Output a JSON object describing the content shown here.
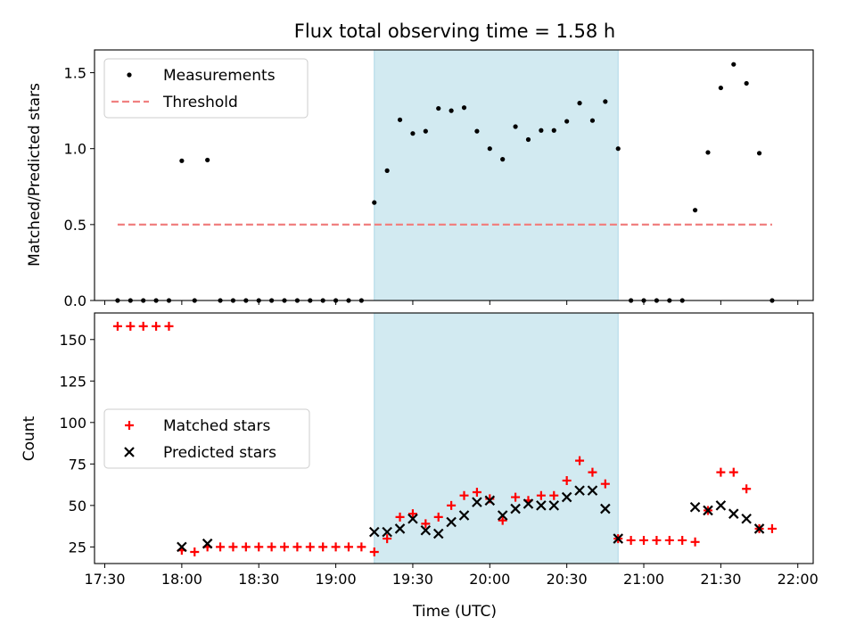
{
  "chart_data": {
    "title": "Flux total observing time = 1.58 h",
    "xlabel": "Time (UTC)",
    "x_unit": "minutes after 17:30 UTC",
    "xlim": [
      -4,
      276
    ],
    "xticks": [
      0,
      30,
      60,
      90,
      120,
      150,
      180,
      210,
      240,
      270
    ],
    "xtick_labels": [
      "17:30",
      "18:00",
      "18:30",
      "19:00",
      "19:30",
      "20:00",
      "20:30",
      "21:00",
      "21:30",
      "22:00"
    ],
    "observing_span": {
      "start": 105,
      "end": 200,
      "color": "#add8e6"
    },
    "panels": [
      {
        "type": "scatter",
        "ylabel": "Matched/Predicted stars",
        "ylim": [
          0,
          1.65
        ],
        "yticks": [
          0.0,
          0.5,
          1.0,
          1.5
        ],
        "ytick_labels": [
          "0.0",
          "0.5",
          "1.0",
          "1.5"
        ],
        "legend_position": "top-left",
        "series": [
          {
            "name": "Measurements",
            "marker": "dot",
            "color": "#000000",
            "points": [
              [
                5,
                0
              ],
              [
                10,
                0
              ],
              [
                15,
                0
              ],
              [
                20,
                0
              ],
              [
                25,
                0
              ],
              [
                30,
                0.92
              ],
              [
                35,
                0
              ],
              [
                40,
                0.925
              ],
              [
                45,
                0
              ],
              [
                50,
                0
              ],
              [
                55,
                0
              ],
              [
                60,
                0
              ],
              [
                65,
                0
              ],
              [
                70,
                0
              ],
              [
                75,
                0
              ],
              [
                80,
                0
              ],
              [
                85,
                0
              ],
              [
                90,
                0
              ],
              [
                95,
                0
              ],
              [
                100,
                0
              ],
              [
                105,
                0.645
              ],
              [
                110,
                0.855
              ],
              [
                115,
                1.19
              ],
              [
                120,
                1.1
              ],
              [
                125,
                1.115
              ],
              [
                130,
                1.265
              ],
              [
                135,
                1.25
              ],
              [
                140,
                1.27
              ],
              [
                145,
                1.115
              ],
              [
                150,
                1.0
              ],
              [
                155,
                0.93
              ],
              [
                160,
                1.145
              ],
              [
                165,
                1.06
              ],
              [
                170,
                1.12
              ],
              [
                175,
                1.12
              ],
              [
                180,
                1.18
              ],
              [
                185,
                1.3
              ],
              [
                190,
                1.185
              ],
              [
                195,
                1.31
              ],
              [
                200,
                1.0
              ],
              [
                205,
                0
              ],
              [
                210,
                0
              ],
              [
                215,
                0
              ],
              [
                220,
                0
              ],
              [
                225,
                0
              ],
              [
                230,
                0.595
              ],
              [
                235,
                0.975
              ],
              [
                240,
                1.4
              ],
              [
                245,
                1.555
              ],
              [
                250,
                1.43
              ],
              [
                255,
                0.97
              ],
              [
                260,
                0
              ]
            ]
          },
          {
            "name": "Threshold",
            "marker": "dashed-line",
            "color": "#f08080",
            "points": [
              [
                5,
                0.5
              ],
              [
                260,
                0.5
              ]
            ]
          }
        ]
      },
      {
        "type": "scatter",
        "ylabel": "Count",
        "ylim": [
          15,
          166
        ],
        "yticks": [
          25,
          50,
          75,
          100,
          125,
          150
        ],
        "ytick_labels": [
          "25",
          "50",
          "75",
          "100",
          "125",
          "150"
        ],
        "legend_position": "center-left",
        "series": [
          {
            "name": "Matched stars",
            "marker": "plus",
            "color": "#ff0000",
            "points": [
              [
                5,
                158
              ],
              [
                10,
                158
              ],
              [
                15,
                158
              ],
              [
                20,
                158
              ],
              [
                25,
                158
              ],
              [
                30,
                23
              ],
              [
                35,
                22
              ],
              [
                40,
                25
              ],
              [
                45,
                25
              ],
              [
                50,
                25
              ],
              [
                55,
                25
              ],
              [
                60,
                25
              ],
              [
                65,
                25
              ],
              [
                70,
                25
              ],
              [
                75,
                25
              ],
              [
                80,
                25
              ],
              [
                85,
                25
              ],
              [
                90,
                25
              ],
              [
                95,
                25
              ],
              [
                100,
                25
              ],
              [
                105,
                22
              ],
              [
                110,
                30
              ],
              [
                115,
                43
              ],
              [
                120,
                45
              ],
              [
                125,
                39
              ],
              [
                130,
                43
              ],
              [
                135,
                50
              ],
              [
                140,
                56
              ],
              [
                145,
                58
              ],
              [
                150,
                54
              ],
              [
                155,
                41
              ],
              [
                160,
                55
              ],
              [
                165,
                53
              ],
              [
                170,
                56
              ],
              [
                175,
                56
              ],
              [
                180,
                65
              ],
              [
                185,
                77
              ],
              [
                190,
                70
              ],
              [
                195,
                63
              ],
              [
                200,
                30
              ],
              [
                205,
                29
              ],
              [
                210,
                29
              ],
              [
                215,
                29
              ],
              [
                220,
                29
              ],
              [
                225,
                29
              ],
              [
                230,
                28
              ],
              [
                235,
                47
              ],
              [
                240,
                70
              ],
              [
                245,
                70
              ],
              [
                250,
                60
              ],
              [
                255,
                36
              ],
              [
                260,
                36
              ]
            ]
          },
          {
            "name": "Predicted stars",
            "marker": "x",
            "color": "#000000",
            "points": [
              [
                30,
                25
              ],
              [
                40,
                27
              ],
              [
                105,
                34
              ],
              [
                110,
                34
              ],
              [
                115,
                36
              ],
              [
                120,
                42
              ],
              [
                125,
                35
              ],
              [
                130,
                33
              ],
              [
                135,
                40
              ],
              [
                140,
                44
              ],
              [
                145,
                52
              ],
              [
                150,
                53
              ],
              [
                155,
                44
              ],
              [
                160,
                48
              ],
              [
                165,
                51
              ],
              [
                170,
                50
              ],
              [
                175,
                50
              ],
              [
                180,
                55
              ],
              [
                185,
                59
              ],
              [
                190,
                59
              ],
              [
                195,
                48
              ],
              [
                200,
                30
              ],
              [
                230,
                49
              ],
              [
                235,
                47
              ],
              [
                240,
                50
              ],
              [
                245,
                45
              ],
              [
                250,
                42
              ],
              [
                255,
                36
              ]
            ]
          }
        ]
      }
    ]
  }
}
